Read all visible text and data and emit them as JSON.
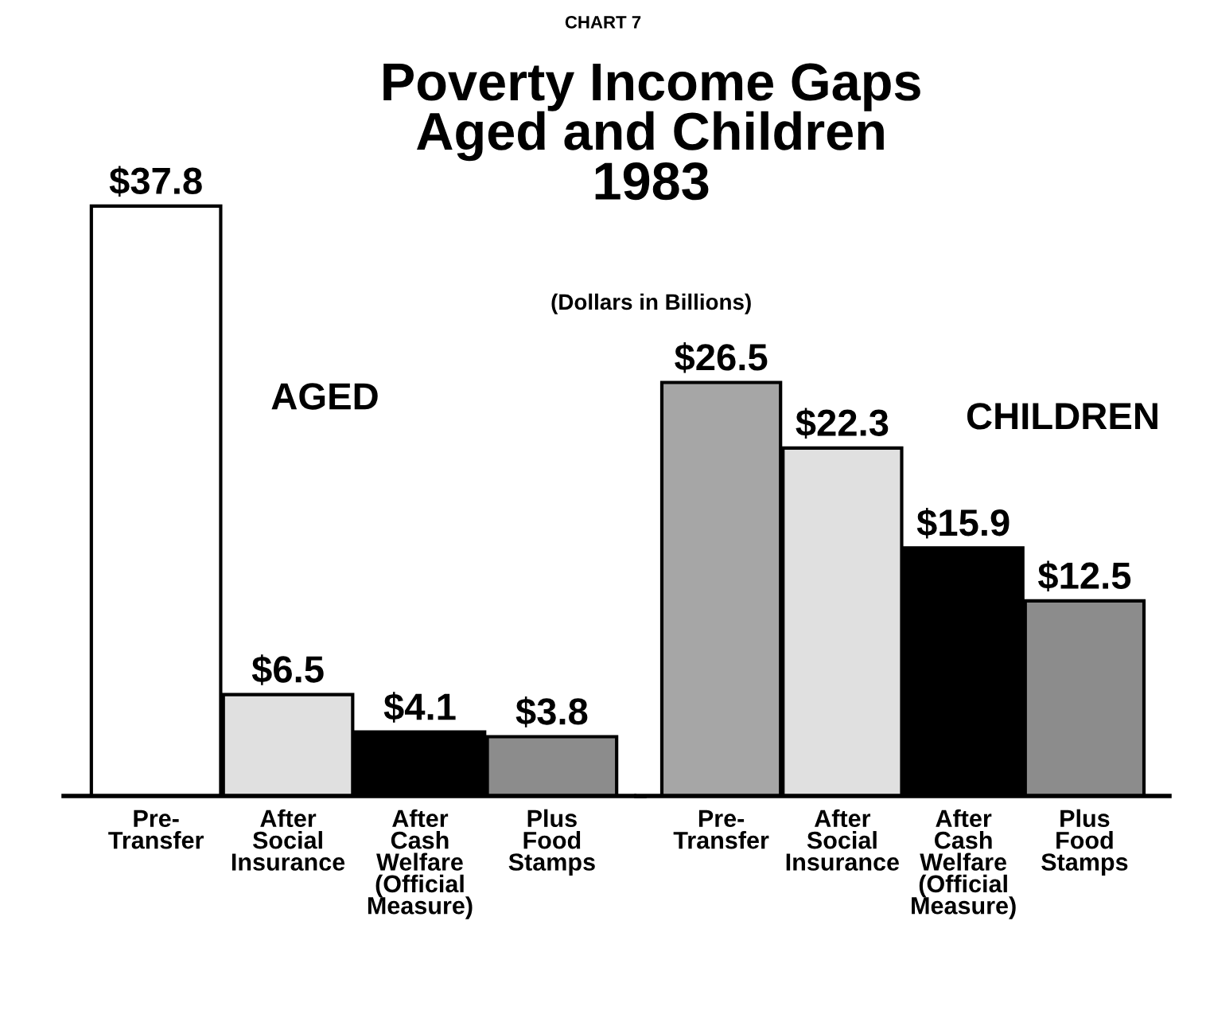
{
  "chart_data": [
    {
      "type": "bar",
      "title": "Poverty Income Gaps\nAged and Children\n1983",
      "subtitle": "(Dollars in Billions)",
      "annotations": [
        "CHART 7",
        "AGED"
      ],
      "categories": [
        "Pre-\nTransfer",
        "After\nSocial\nInsurance",
        "After\nCash\nWelfare\n(Official\nMeasure)",
        "Plus\nFood\nStamps"
      ],
      "values": [
        37.8,
        6.5,
        4.1,
        3.8
      ],
      "value_labels": [
        "$37.8",
        "$6.5",
        "$4.1",
        "$3.8"
      ],
      "colors": [
        "#ffffff",
        "#e0e0e0",
        "#000000",
        "#8c8c8c"
      ]
    },
    {
      "type": "bar",
      "annotations": [
        "CHILDREN"
      ],
      "categories": [
        "Pre-\nTransfer",
        "After\nSocial\nInsurance",
        "After\nCash\nWelfare\n(Official\nMeasure)",
        "Plus\nFood\nStamps"
      ],
      "values": [
        26.5,
        22.3,
        15.9,
        12.5
      ],
      "value_labels": [
        "$26.5",
        "$22.3",
        "$15.9",
        "$12.5"
      ],
      "colors": [
        "#a6a6a6",
        "#e0e0e0",
        "#000000",
        "#8c8c8c"
      ]
    }
  ]
}
